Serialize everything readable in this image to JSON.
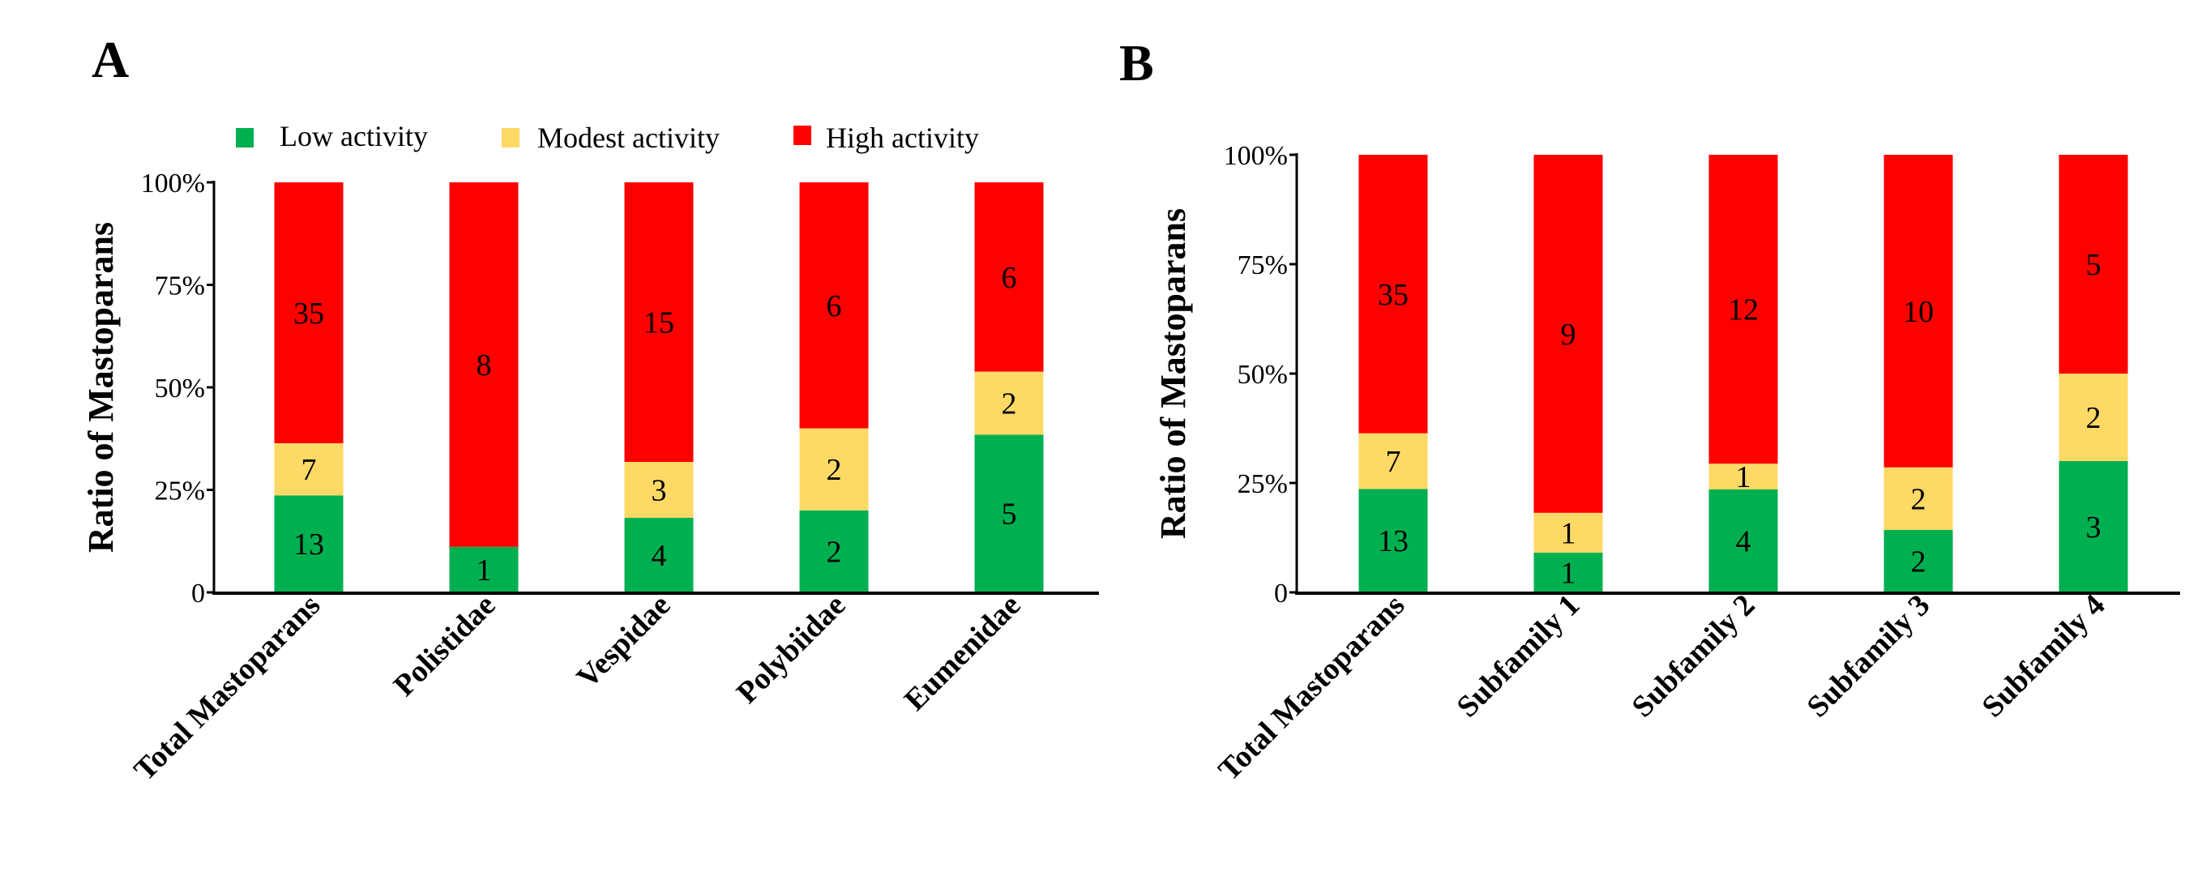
{
  "legend": [
    {
      "label": "Low activity",
      "color": "#00b050"
    },
    {
      "label": "Modest activity",
      "color": "#ffd966"
    },
    {
      "label": "High activity",
      "color": "#ff0000"
    }
  ],
  "chart_data": [
    {
      "panel": "A",
      "type": "bar",
      "stacked": "percent",
      "ylabel": "Ratio of  Mastoparans",
      "yticks": [
        "0",
        "25%",
        "50%",
        "75%",
        "100%"
      ],
      "ylim": [
        0,
        100
      ],
      "legend_position": "top",
      "categories": [
        "Total Mastoparans",
        "Polistidae",
        "Vespidae",
        "Polybiidae",
        "Eumenidae"
      ],
      "series": [
        {
          "name": "Low activity",
          "values": [
            13,
            1,
            4,
            2,
            5
          ]
        },
        {
          "name": "Modest activity",
          "values": [
            7,
            0,
            3,
            2,
            2
          ]
        },
        {
          "name": "High activity",
          "values": [
            35,
            8,
            15,
            6,
            6
          ]
        }
      ]
    },
    {
      "panel": "B",
      "type": "bar",
      "stacked": "percent",
      "ylabel": "Ratio of  Mastoparans",
      "yticks": [
        "0",
        "25%",
        "50%",
        "75%",
        "100%"
      ],
      "ylim": [
        0,
        100
      ],
      "categories": [
        "Total Mastoparans",
        "Subfamily 1",
        "Subfamily 2",
        "Subfamily 3",
        "Subfamily 4"
      ],
      "series": [
        {
          "name": "Low activity",
          "values": [
            13,
            1,
            4,
            2,
            3
          ]
        },
        {
          "name": "Modest activity",
          "values": [
            7,
            1,
            1,
            2,
            2
          ]
        },
        {
          "name": "High activity",
          "values": [
            35,
            9,
            12,
            10,
            5
          ]
        }
      ]
    }
  ]
}
